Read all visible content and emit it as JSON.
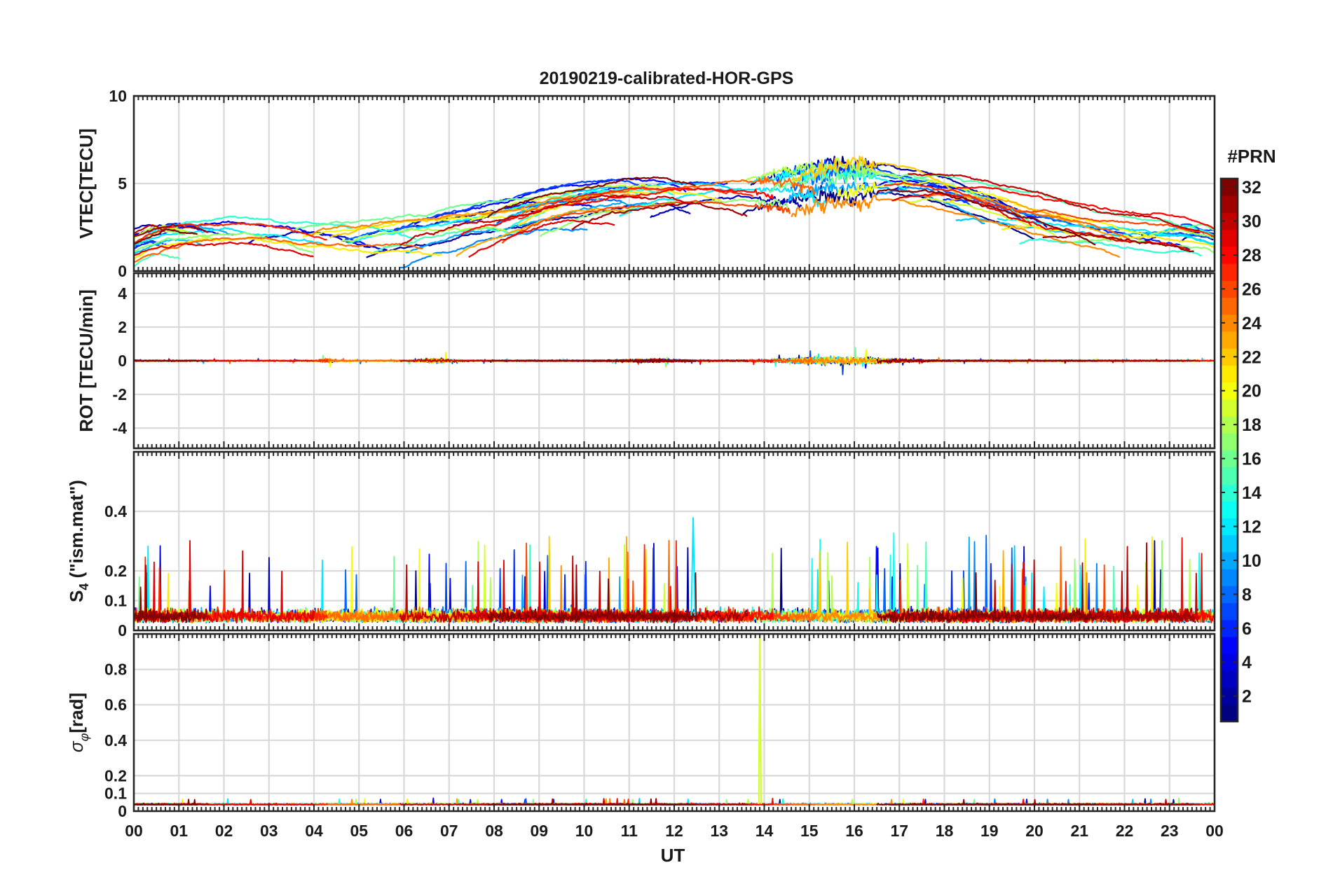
{
  "chart_data": {
    "type": "line",
    "title": "20190219-calibrated-HOR-GPS",
    "xlabel": "UT",
    "x_ticks": [
      "00",
      "01",
      "02",
      "03",
      "04",
      "05",
      "06",
      "07",
      "08",
      "09",
      "10",
      "11",
      "12",
      "13",
      "14",
      "15",
      "16",
      "17",
      "18",
      "19",
      "20",
      "21",
      "22",
      "23",
      "00"
    ],
    "xlim": [
      0,
      24
    ],
    "panels": [
      {
        "id": "vtec",
        "ylabel": "VTEC[TECU]",
        "ylim": [
          0,
          10
        ],
        "y_ticks": [
          0,
          5,
          10
        ],
        "y_tick_labels": [
          "0",
          "5",
          "10"
        ]
      },
      {
        "id": "rot",
        "ylabel": "ROT [TECU/min]",
        "ylim": [
          -5.2,
          5.2
        ],
        "y_ticks": [
          -4,
          -2,
          0,
          2,
          4
        ],
        "y_tick_labels": [
          "-4",
          "-2",
          "0",
          "2",
          "4"
        ]
      },
      {
        "id": "s4",
        "ylabel": "S4 (\"ism.mat\")",
        "ylabel_main": "S",
        "ylabel_sub": "4",
        "ylabel_rest": " (\"ism.mat\")",
        "ylim": [
          0,
          0.6
        ],
        "y_ticks": [
          0,
          0.1,
          0.2,
          0.4
        ],
        "y_tick_labels": [
          "0",
          "0.1",
          "0.2",
          "0.4"
        ]
      },
      {
        "id": "sigphi",
        "ylabel": "σφ[rad]",
        "ylabel_main": "σ",
        "ylabel_sub": "φ",
        "ylabel_rest": "[rad]",
        "ylim": [
          0,
          1
        ],
        "y_ticks": [
          0,
          0.1,
          0.2,
          0.4,
          0.6,
          0.8
        ],
        "y_tick_labels": [
          "0",
          "0.1",
          "0.2",
          "0.4",
          "0.6",
          "0.8"
        ]
      }
    ],
    "colorbar": {
      "label": "#PRN",
      "range": [
        1,
        32
      ],
      "ticks": [
        2,
        4,
        6,
        8,
        10,
        12,
        14,
        16,
        18,
        20,
        22,
        24,
        26,
        28,
        30,
        32
      ],
      "colormap": "jet",
      "levels": 32
    },
    "series_note": "32 GPS PRN satellite tracks, colored by PRN (jet colormap)",
    "grid": true
  },
  "colors": {
    "axis": "#262626",
    "grid": "#d9d9d9",
    "background": "#ffffff"
  }
}
